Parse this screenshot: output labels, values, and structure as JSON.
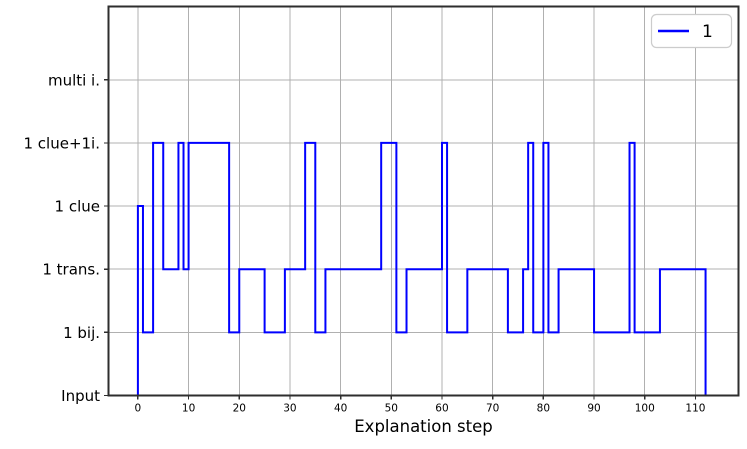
{
  "chart_data": {
    "type": "line",
    "subtype": "step",
    "step_style": "pre",
    "title": "",
    "xlabel": "Explanation step",
    "ylabel": "",
    "x_ticks": [
      0,
      10,
      20,
      30,
      40,
      50,
      60,
      70,
      80,
      90,
      100,
      110
    ],
    "xlim": [
      -5.8,
      118.5
    ],
    "y_categories": [
      "Input",
      "1 bij.",
      "1 trans.",
      "1 clue",
      "1 clue+1i.",
      "multi i."
    ],
    "ylim": [
      0,
      6.16
    ],
    "grid": true,
    "grid_color": "#b0b0b0",
    "spine_color": "#2e2e2e",
    "background_color": "#ffffff",
    "legend": {
      "position": "upper right",
      "entries": [
        {
          "label": "1",
          "color": "#0000ff"
        }
      ]
    },
    "series": [
      {
        "name": "1",
        "color": "#0000ff",
        "line_width": 2,
        "start": {
          "x": 0,
          "level": "Input"
        },
        "transitions": [
          [
            0,
            "1 clue"
          ],
          [
            1,
            "1 bij."
          ],
          [
            3,
            "1 clue+1i."
          ],
          [
            5,
            "1 trans."
          ],
          [
            8,
            "1 clue+1i."
          ],
          [
            9,
            "1 trans."
          ],
          [
            10,
            "1 clue+1i."
          ],
          [
            18,
            "1 bij."
          ],
          [
            20,
            "1 trans."
          ],
          [
            25,
            "1 bij."
          ],
          [
            29,
            "1 trans."
          ],
          [
            33,
            "1 clue+1i."
          ],
          [
            35,
            "1 bij."
          ],
          [
            37,
            "1 trans."
          ],
          [
            48,
            "1 clue+1i."
          ],
          [
            51,
            "1 bij."
          ],
          [
            53,
            "1 trans."
          ],
          [
            60,
            "1 clue+1i."
          ],
          [
            61,
            "1 bij."
          ],
          [
            65,
            "1 trans."
          ],
          [
            73,
            "1 bij."
          ],
          [
            76,
            "1 trans."
          ],
          [
            77,
            "1 clue+1i."
          ],
          [
            78,
            "1 bij."
          ],
          [
            80,
            "1 clue+1i."
          ],
          [
            81,
            "1 bij."
          ],
          [
            83,
            "1 trans."
          ],
          [
            90,
            "1 bij."
          ],
          [
            97,
            "1 clue+1i."
          ],
          [
            98,
            "1 bij."
          ],
          [
            103,
            "1 trans."
          ],
          [
            112,
            "Input"
          ]
        ],
        "end_x": 113
      }
    ]
  }
}
